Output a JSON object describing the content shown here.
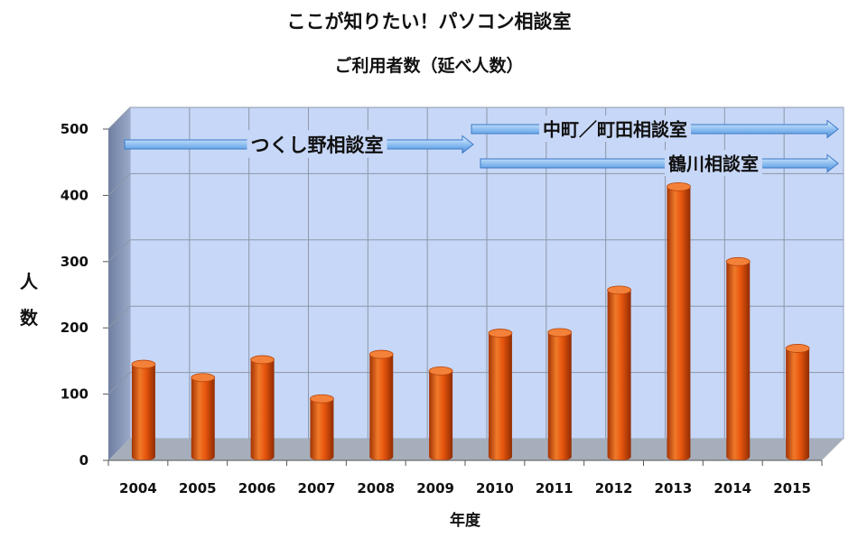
{
  "chart_data": {
    "type": "bar",
    "title": "ここが知りたい！パソコン相談室",
    "subtitle": "ご利用者数（延べ人数）",
    "xlabel": "年度",
    "ylabel": "人数",
    "ylim": [
      0,
      500
    ],
    "yticks": [
      "0",
      "100",
      "200",
      "300",
      "400",
      "500"
    ],
    "grid": true,
    "categories": [
      "2004",
      "2005",
      "2006",
      "2007",
      "2008",
      "2009",
      "2010",
      "2011",
      "2012",
      "2013",
      "2014",
      "2015"
    ],
    "values": [
      145,
      125,
      152,
      93,
      160,
      135,
      192,
      193,
      257,
      413,
      300,
      169
    ],
    "bar_color": "#e8560e",
    "plot_background": "#c7d7f7",
    "annotations": [
      {
        "label": "つくし野相談室",
        "from_category": "2004",
        "to_category": "2010"
      },
      {
        "label": "中町／町田相談室",
        "from_category": "2010",
        "to_category": "2015"
      },
      {
        "label": "鶴川相談室",
        "from_category": "2010",
        "to_category": "2015"
      }
    ]
  }
}
